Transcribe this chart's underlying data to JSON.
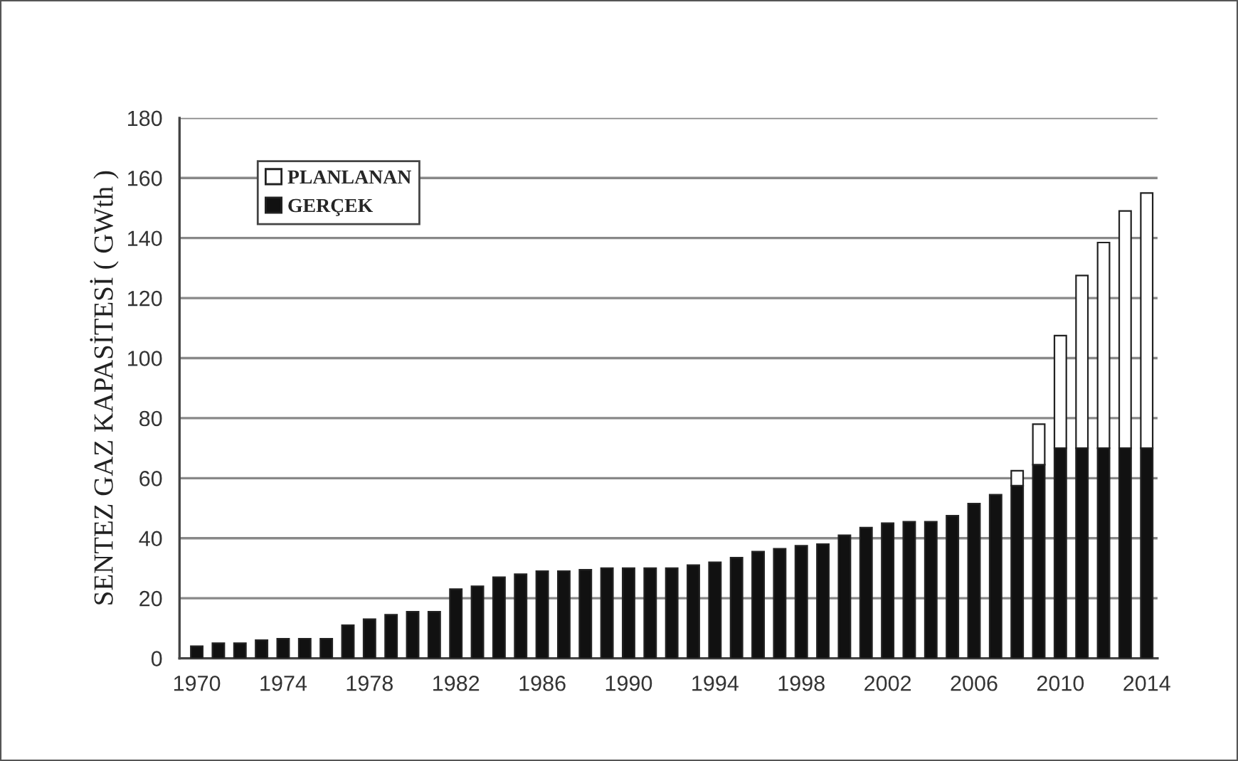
{
  "chart_data": {
    "type": "bar",
    "stacked": true,
    "ylabel": "SENTEZ GAZ KAPASİTESİ ( GWth )",
    "categories": [
      "1970",
      null,
      null,
      null,
      "1974",
      null,
      null,
      null,
      "1978",
      null,
      null,
      null,
      "1982",
      null,
      null,
      null,
      "1986",
      null,
      null,
      null,
      "1990",
      null,
      null,
      null,
      "1994",
      null,
      null,
      null,
      "1998",
      null,
      null,
      null,
      "2002",
      null,
      null,
      null,
      "2006",
      null,
      null,
      null,
      "2010",
      null,
      null,
      null,
      "2014"
    ],
    "series": [
      {
        "name": "GERÇEK",
        "color": "#111111",
        "values": [
          4,
          5,
          5,
          6,
          6.5,
          6.5,
          6.5,
          11,
          13,
          14.5,
          15.5,
          15.5,
          23,
          24,
          27,
          28,
          29,
          29,
          29.5,
          30,
          30,
          30,
          30,
          31,
          32,
          33.5,
          35.5,
          36.5,
          37.5,
          38,
          41,
          43.5,
          45,
          45.5,
          45.5,
          47.5,
          51.5,
          54.5,
          57.5,
          64.5,
          70,
          70,
          70,
          70,
          70
        ]
      },
      {
        "name": "PLANLANAN",
        "color": "#ffffff",
        "values": [
          null,
          null,
          null,
          null,
          null,
          null,
          null,
          null,
          null,
          null,
          null,
          null,
          null,
          null,
          null,
          null,
          null,
          null,
          null,
          null,
          null,
          null,
          null,
          null,
          null,
          null,
          null,
          null,
          null,
          null,
          null,
          null,
          null,
          null,
          null,
          null,
          null,
          null,
          5,
          13.5,
          37.5,
          57.5,
          68.5,
          79,
          85
        ]
      }
    ],
    "ylim": [
      0,
      180
    ],
    "yticks": [
      0,
      20,
      40,
      60,
      80,
      100,
      120,
      140,
      160,
      180
    ],
    "grid": "y",
    "legend": "top left"
  }
}
